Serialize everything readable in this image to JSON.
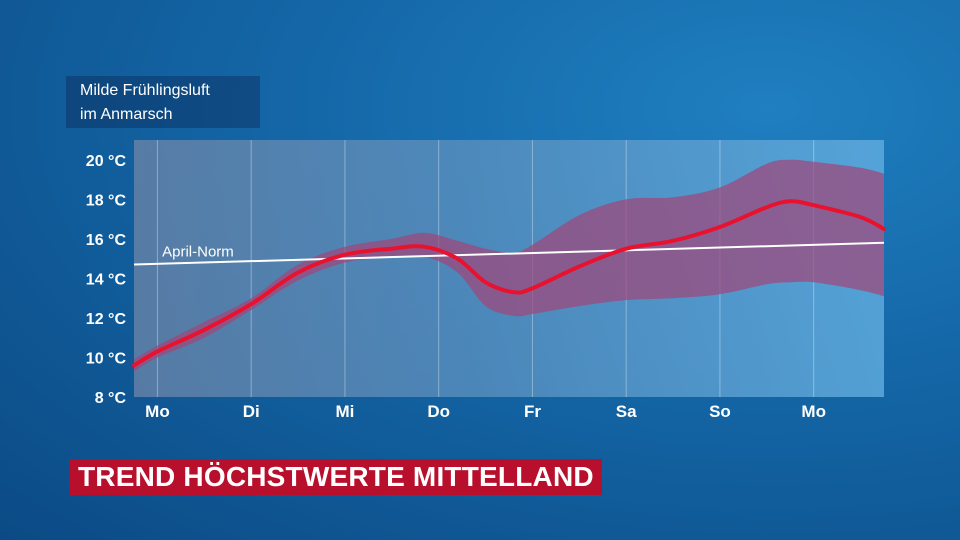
{
  "subtitle": {
    "line1": "Milde Frühlingsluft",
    "line2": "im Anmarsch"
  },
  "banner": {
    "title": "TREND HÖCHSTWERTE MITTELLAND",
    "color": "#b8102c"
  },
  "colors": {
    "forecast_line": "#e8122f",
    "band": "#a0467a",
    "norm_line": "#ffffff",
    "plot_bg": "#5aa6d8"
  },
  "chart_data": {
    "type": "line",
    "title": "",
    "xlabel": "",
    "ylabel": "",
    "ylim": [
      8,
      21
    ],
    "y_ticks": [
      8,
      10,
      12,
      14,
      16,
      18,
      20
    ],
    "y_tick_labels": [
      "8 °C",
      "10 °C",
      "12 °C",
      "14 °C",
      "16 °C",
      "18 °C",
      "20 °C"
    ],
    "categories": [
      "Mo",
      "Di",
      "Mi",
      "Do",
      "Fr",
      "Sa",
      "So",
      "Mo"
    ],
    "x_range": [
      -0.25,
      7.75
    ],
    "grid": "vertical",
    "series": [
      {
        "name": "",
        "role": "forecast",
        "x": [
          -0.25,
          0.0,
          0.5,
          1.0,
          1.5,
          2.0,
          2.5,
          2.85,
          3.2,
          3.5,
          3.8,
          4.0,
          4.5,
          5.0,
          5.5,
          6.0,
          6.5,
          6.75,
          7.0,
          7.5,
          7.75
        ],
        "y": [
          9.6,
          10.3,
          11.4,
          12.7,
          14.3,
          15.2,
          15.5,
          15.6,
          15.0,
          13.8,
          13.3,
          13.5,
          14.6,
          15.5,
          15.9,
          16.6,
          17.6,
          17.9,
          17.7,
          17.1,
          16.5
        ]
      },
      {
        "name": "",
        "role": "band_upper",
        "x": [
          -0.25,
          0.0,
          0.5,
          1.0,
          1.5,
          2.0,
          2.5,
          2.85,
          3.2,
          3.5,
          3.8,
          4.0,
          4.5,
          5.0,
          5.5,
          6.0,
          6.5,
          6.75,
          7.0,
          7.5,
          7.75
        ],
        "y": [
          9.9,
          10.6,
          11.8,
          13.0,
          14.7,
          15.6,
          16.0,
          16.3,
          15.9,
          15.5,
          15.3,
          15.7,
          17.2,
          18.0,
          18.1,
          18.6,
          19.8,
          20.0,
          19.9,
          19.6,
          19.3
        ]
      },
      {
        "name": "",
        "role": "band_lower",
        "x": [
          -0.25,
          0.0,
          0.5,
          1.0,
          1.5,
          2.0,
          2.5,
          2.85,
          3.2,
          3.5,
          3.8,
          4.0,
          4.5,
          5.0,
          5.5,
          6.0,
          6.5,
          6.75,
          7.0,
          7.5,
          7.75
        ],
        "y": [
          9.3,
          10.0,
          11.0,
          12.4,
          13.9,
          14.8,
          15.1,
          15.1,
          14.3,
          12.6,
          12.1,
          12.2,
          12.6,
          12.9,
          13.0,
          13.2,
          13.7,
          13.8,
          13.8,
          13.4,
          13.1
        ]
      },
      {
        "name": "April-Norm",
        "role": "norm",
        "x": [
          -0.25,
          7.75
        ],
        "y": [
          14.7,
          15.8
        ]
      }
    ]
  }
}
